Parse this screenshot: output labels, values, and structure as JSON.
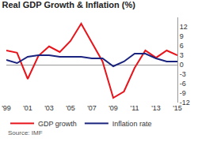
{
  "chart_data": {
    "type": "line",
    "title": "Real GDP Growth & Inflation (%)",
    "x": [
      1999,
      2000,
      2001,
      2002,
      2003,
      2004,
      2005,
      2006,
      2007,
      2008,
      2009,
      2010,
      2011,
      2012,
      2013,
      2014,
      2015
    ],
    "series": [
      {
        "name": "GDP growth",
        "color": "#e8141b",
        "values": [
          4.5,
          3.8,
          -4.5,
          2.8,
          5.8,
          4.0,
          7.5,
          13.0,
          7.0,
          1.0,
          -10.5,
          -8.5,
          -1.0,
          4.5,
          2.2,
          4.5,
          3.0
        ]
      },
      {
        "name": "Inflation rate",
        "color": "#1a237e",
        "values": [
          1.5,
          0.5,
          2.5,
          3.0,
          3.0,
          2.5,
          2.5,
          2.5,
          2.0,
          2.0,
          -0.5,
          1.0,
          3.5,
          3.5,
          2.0,
          1.0,
          1.0
        ]
      }
    ],
    "xlim": [
      1999,
      2015
    ],
    "xticks": [
      {
        "value": 1999,
        "label": "'99"
      },
      {
        "value": 2001,
        "label": "'01"
      },
      {
        "value": 2003,
        "label": "'03"
      },
      {
        "value": 2005,
        "label": "'05"
      },
      {
        "value": 2007,
        "label": "'07"
      },
      {
        "value": 2009,
        "label": "'09"
      },
      {
        "value": 2011,
        "label": "'11"
      },
      {
        "value": 2013,
        "label": "'13"
      },
      {
        "value": 2015,
        "label": "'15"
      }
    ],
    "ylim": [
      -12,
      15
    ],
    "yticks": [
      -12,
      -9,
      -6,
      -3,
      0,
      3,
      6,
      9,
      12
    ],
    "grid": false,
    "legend": "bottom",
    "annotations": [
      {
        "text": "Source: IMF"
      }
    ]
  }
}
